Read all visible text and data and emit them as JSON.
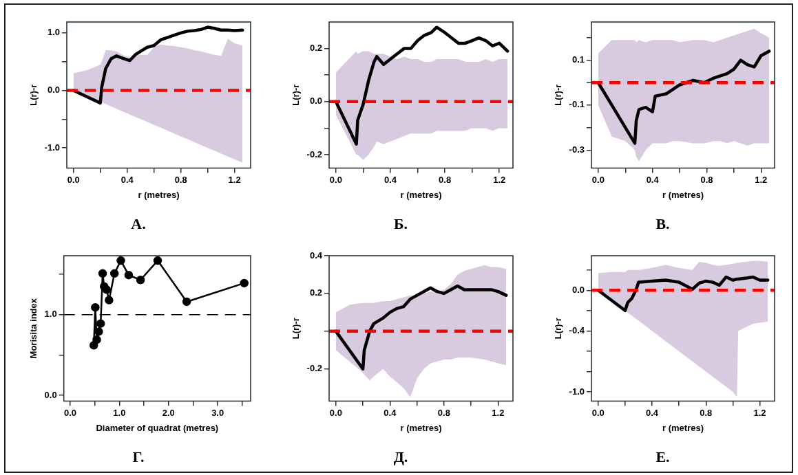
{
  "chart_data": [
    {
      "type": "line",
      "title": "А.",
      "xlabel": "r (metres)",
      "ylabel": "L(r)-r",
      "marker": "none",
      "x": [
        0,
        0.1,
        0.2,
        0.21,
        0.24,
        0.28,
        0.32,
        0.38,
        0.42,
        0.46,
        0.5,
        0.55,
        0.6,
        0.65,
        0.7,
        0.75,
        0.8,
        0.85,
        0.9,
        0.95,
        1.0,
        1.05,
        1.1,
        1.15,
        1.2,
        1.26
      ],
      "series": [
        {
          "color": "#000000",
          "values": [
            0,
            -0.11,
            -0.22,
            0.05,
            0.38,
            0.55,
            0.6,
            0.55,
            0.52,
            0.62,
            0.68,
            0.75,
            0.78,
            0.88,
            0.92,
            0.96,
            1.0,
            1.03,
            1.04,
            1.06,
            1.1,
            1.08,
            1.05,
            1.05,
            1.04,
            1.05
          ],
          "lower": [
            0,
            -0.1,
            -0.2,
            -0.21,
            -0.24,
            -0.28,
            -0.32,
            -0.38,
            -0.42,
            -0.46,
            -0.5,
            -0.55,
            -0.6,
            -0.65,
            -0.7,
            -0.75,
            -0.8,
            -0.85,
            -0.9,
            -0.95,
            -1.0,
            -1.05,
            -1.1,
            -1.15,
            -1.2,
            -1.26
          ],
          "upper": [
            0.3,
            0.35,
            0.45,
            0.5,
            0.7,
            0.7,
            0.68,
            0.6,
            0.58,
            0.6,
            0.62,
            0.62,
            0.75,
            0.8,
            0.78,
            0.77,
            0.75,
            0.73,
            0.7,
            0.68,
            0.65,
            0.62,
            0.6,
            0.9,
            0.82,
            0.78
          ]
        }
      ],
      "xlim": [
        -0.05,
        1.32
      ],
      "xticks": [
        {
          "value": 0,
          "label": "0.0"
        },
        {
          "value": 0.2,
          "label": null
        },
        0.4,
        {
          "value": 0.6,
          "label": null
        },
        0.8,
        {
          "value": 1,
          "label": null
        },
        1.2
      ],
      "ylim": [
        -1.35,
        1.19
      ],
      "yticks": [
        {
          "value": -1,
          "label": "-1.0"
        },
        {
          "value": -0.5,
          "label": null
        },
        {
          "value": 0,
          "label": "0.0"
        },
        {
          "value": 0.5,
          "label": null
        },
        {
          "value": 1,
          "label": "1.0"
        }
      ],
      "ref_lines": [
        {
          "axis": "y",
          "value": 0,
          "color": "#ff0000",
          "line_style": "dashed"
        }
      ]
    },
    {
      "type": "line",
      "title": "Б.",
      "xlabel": "r (metres)",
      "ylabel": "L(r)-r",
      "marker": "none",
      "x": [
        0,
        0.15,
        0.16,
        0.2,
        0.24,
        0.28,
        0.3,
        0.35,
        0.4,
        0.45,
        0.5,
        0.55,
        0.6,
        0.65,
        0.7,
        0.74,
        0.8,
        0.85,
        0.9,
        0.95,
        1.0,
        1.05,
        1.1,
        1.15,
        1.2,
        1.26
      ],
      "series": [
        {
          "color": "#000000",
          "values": [
            0,
            -0.16,
            -0.07,
            -0.01,
            0.08,
            0.15,
            0.17,
            0.14,
            0.16,
            0.18,
            0.2,
            0.2,
            0.23,
            0.25,
            0.26,
            0.28,
            0.26,
            0.24,
            0.22,
            0.22,
            0.23,
            0.24,
            0.23,
            0.21,
            0.22,
            0.19
          ],
          "lower": [
            -0.05,
            -0.2,
            -0.2,
            -0.22,
            -0.2,
            -0.17,
            -0.15,
            -0.16,
            -0.15,
            -0.14,
            -0.13,
            -0.12,
            -0.12,
            -0.12,
            -0.12,
            -0.11,
            -0.11,
            -0.11,
            -0.11,
            -0.11,
            -0.1,
            -0.1,
            -0.1,
            -0.11,
            -0.1,
            -0.1
          ],
          "upper": [
            0.11,
            0.19,
            0.18,
            0.19,
            0.19,
            0.18,
            0.18,
            0.18,
            0.17,
            0.16,
            0.17,
            0.16,
            0.16,
            0.15,
            0.15,
            0.16,
            0.16,
            0.16,
            0.16,
            0.15,
            0.15,
            0.15,
            0.16,
            0.15,
            0.16,
            0.16
          ]
        }
      ],
      "xlim": [
        -0.05,
        1.3
      ],
      "xticks": [
        {
          "value": 0,
          "label": "0.0"
        },
        {
          "value": 0.2,
          "label": null
        },
        0.4,
        {
          "value": 0.6,
          "label": null
        },
        0.8,
        {
          "value": 1,
          "label": null
        },
        1.2
      ],
      "ylim": [
        -0.25,
        0.3
      ],
      "yticks": [
        -0.2,
        {
          "value": -0.1,
          "label": null
        },
        {
          "value": 0,
          "label": "0.0"
        },
        {
          "value": 0.1,
          "label": null
        },
        0.2
      ],
      "ref_lines": [
        {
          "axis": "y",
          "value": 0,
          "color": "#ff0000",
          "line_style": "dashed"
        }
      ]
    },
    {
      "type": "line",
      "title": "В.",
      "xlabel": "r (metres)",
      "ylabel": "L(r)-r",
      "marker": "none",
      "x": [
        0,
        0.1,
        0.2,
        0.27,
        0.28,
        0.3,
        0.35,
        0.4,
        0.42,
        0.5,
        0.55,
        0.6,
        0.7,
        0.78,
        0.85,
        0.9,
        0.95,
        1.0,
        1.05,
        1.1,
        1.15,
        1.2,
        1.26
      ],
      "series": [
        {
          "color": "#000000",
          "values": [
            0,
            -0.1,
            -0.2,
            -0.27,
            -0.17,
            -0.12,
            -0.11,
            -0.13,
            -0.06,
            -0.05,
            -0.03,
            -0.01,
            0.01,
            0.0,
            0.02,
            0.03,
            0.04,
            0.06,
            0.1,
            0.08,
            0.07,
            0.12,
            0.14
          ],
          "lower": [
            -0.1,
            -0.24,
            -0.26,
            -0.3,
            -0.33,
            -0.35,
            -0.3,
            -0.27,
            -0.27,
            -0.27,
            -0.26,
            -0.26,
            -0.27,
            -0.27,
            -0.26,
            -0.26,
            -0.27,
            -0.26,
            -0.27,
            -0.28,
            -0.27,
            -0.27,
            -0.27
          ],
          "upper": [
            0.13,
            0.19,
            0.19,
            0.19,
            0.18,
            0.19,
            0.18,
            0.19,
            0.19,
            0.19,
            0.19,
            0.18,
            0.19,
            0.19,
            0.18,
            0.19,
            0.2,
            0.21,
            0.22,
            0.23,
            0.24,
            0.22,
            0.2
          ]
        }
      ],
      "xlim": [
        -0.05,
        1.3
      ],
      "xticks": [
        {
          "value": 0,
          "label": "0.0"
        },
        {
          "value": 0.2,
          "label": null
        },
        0.4,
        {
          "value": 0.6,
          "label": null
        },
        0.8,
        {
          "value": 1,
          "label": null
        },
        1.2
      ],
      "ylim": [
        -0.38,
        0.27
      ],
      "yticks": [
        -0.3,
        {
          "value": -0.2,
          "label": null
        },
        -0.1,
        {
          "value": 0,
          "label": null
        },
        0.1,
        {
          "value": 0.2,
          "label": null
        }
      ],
      "ref_lines": [
        {
          "axis": "y",
          "value": 0,
          "color": "#ff0000",
          "line_style": "dashed"
        }
      ]
    },
    {
      "type": "line",
      "title": "Г.",
      "xlabel": "Diameter of quadrat (metres)",
      "ylabel": "Morisita index",
      "marker": "circle",
      "x": [
        0.48,
        0.51,
        0.54,
        0.58,
        0.62,
        0.66,
        0.69,
        0.74,
        0.79,
        0.9,
        1.03,
        1.19,
        1.43,
        1.78,
        2.37,
        3.54
      ],
      "series": [
        {
          "color": "#000000",
          "values": [
            0.62,
            1.09,
            0.69,
            0.79,
            0.89,
            1.51,
            1.35,
            1.31,
            1.18,
            1.51,
            1.67,
            1.49,
            1.43,
            1.67,
            1.16,
            1.39
          ]
        }
      ],
      "xlim": [
        -0.13,
        3.67
      ],
      "xticks": [
        {
          "value": 0,
          "label": "0.0"
        },
        {
          "value": 0.5,
          "label": null
        },
        {
          "value": 1,
          "label": "1.0"
        },
        {
          "value": 1.5,
          "label": null
        },
        {
          "value": 2,
          "label": "2.0"
        },
        {
          "value": 2.5,
          "label": null
        },
        {
          "value": 3,
          "label": "3.0"
        },
        {
          "value": 3.5,
          "label": null
        }
      ],
      "ylim": [
        -0.07,
        1.73
      ],
      "yticks": [
        {
          "value": 0,
          "label": "0.0"
        },
        {
          "value": 0.5,
          "label": null
        },
        {
          "value": 1,
          "label": "1.0"
        },
        {
          "value": 1.5,
          "label": null
        }
      ],
      "ref_lines": [
        {
          "axis": "y",
          "value": 1,
          "color": "#000000",
          "line_style": "dashed"
        }
      ]
    },
    {
      "type": "line",
      "title": "Д.",
      "xlabel": "r (metres)",
      "ylabel": "L(r)-r",
      "marker": "none",
      "x": [
        0,
        0.1,
        0.2,
        0.21,
        0.25,
        0.28,
        0.35,
        0.4,
        0.45,
        0.5,
        0.55,
        0.6,
        0.65,
        0.7,
        0.75,
        0.8,
        0.85,
        0.9,
        0.95,
        1.0,
        1.1,
        1.15,
        1.2,
        1.26
      ],
      "series": [
        {
          "color": "#000000",
          "values": [
            0,
            -0.1,
            -0.2,
            -0.1,
            0.0,
            0.04,
            0.07,
            0.1,
            0.12,
            0.13,
            0.17,
            0.19,
            0.21,
            0.23,
            0.21,
            0.2,
            0.22,
            0.24,
            0.22,
            0.22,
            0.22,
            0.22,
            0.21,
            0.19
          ],
          "lower": [
            -0.1,
            -0.16,
            -0.22,
            -0.23,
            -0.26,
            -0.24,
            -0.2,
            -0.24,
            -0.27,
            -0.3,
            -0.35,
            -0.25,
            -0.2,
            -0.17,
            -0.16,
            -0.15,
            -0.15,
            -0.14,
            -0.14,
            -0.14,
            -0.15,
            -0.16,
            -0.17,
            -0.18
          ],
          "upper": [
            0.1,
            0.14,
            0.15,
            0.15,
            0.15,
            0.15,
            0.16,
            0.16,
            0.17,
            0.18,
            0.19,
            0.19,
            0.2,
            0.21,
            0.21,
            0.22,
            0.25,
            0.3,
            0.32,
            0.33,
            0.35,
            0.34,
            0.34,
            0.33
          ]
        }
      ],
      "xlim": [
        -0.05,
        1.31
      ],
      "xticks": [
        {
          "value": 0,
          "label": "0.0"
        },
        {
          "value": 0.2,
          "label": null
        },
        0.4,
        {
          "value": 0.6,
          "label": null
        },
        0.8,
        {
          "value": 1,
          "label": null
        },
        1.2
      ],
      "ylim": [
        -0.37,
        0.4
      ],
      "yticks": [
        -0.2,
        {
          "value": 0,
          "label": null
        },
        0.2,
        0.4
      ],
      "ref_lines": [
        {
          "axis": "y",
          "value": 0,
          "color": "#ff0000",
          "line_style": "dashed"
        }
      ]
    },
    {
      "type": "line",
      "title": "Е.",
      "xlabel": "r (metres)",
      "ylabel": "L(r)-r",
      "marker": "none",
      "x": [
        0,
        0.1,
        0.2,
        0.22,
        0.25,
        0.28,
        0.3,
        0.4,
        0.5,
        0.6,
        0.7,
        0.75,
        0.8,
        0.85,
        0.9,
        0.95,
        1.0,
        1.03,
        1.04,
        1.1,
        1.15,
        1.2,
        1.26
      ],
      "series": [
        {
          "color": "#000000",
          "values": [
            0,
            -0.1,
            -0.2,
            -0.12,
            -0.08,
            0.0,
            0.08,
            0.09,
            0.1,
            0.08,
            0.01,
            0.07,
            0.09,
            0.08,
            0.05,
            0.13,
            0.1,
            0.11,
            0.11,
            0.12,
            0.13,
            0.1,
            0.1
          ],
          "lower": [
            0,
            -0.1,
            -0.2,
            -0.22,
            -0.25,
            -0.28,
            -0.3,
            -0.4,
            -0.5,
            -0.6,
            -0.7,
            -0.75,
            -0.8,
            -0.85,
            -0.9,
            -0.95,
            -1.0,
            -1.05,
            -0.4,
            -0.36,
            -0.33,
            -0.32,
            -0.31
          ],
          "upper": [
            0.17,
            0.18,
            0.18,
            0.2,
            0.2,
            0.2,
            0.2,
            0.22,
            0.25,
            0.22,
            0.2,
            0.28,
            0.27,
            0.25,
            0.24,
            0.25,
            0.26,
            0.27,
            0.27,
            0.28,
            0.29,
            0.29,
            0.28
          ]
        }
      ],
      "xlim": [
        -0.05,
        1.31
      ],
      "xticks": [
        {
          "value": 0,
          "label": "0.0"
        },
        {
          "value": 0.2,
          "label": null
        },
        0.4,
        {
          "value": 0.6,
          "label": null
        },
        0.8,
        {
          "value": 1,
          "label": null
        },
        1.2
      ],
      "ylim": [
        -1.09,
        0.34
      ],
      "yticks": [
        {
          "value": -1,
          "label": "-1.0"
        },
        {
          "value": -0.8,
          "label": null
        },
        {
          "value": -0.6,
          "label": null
        },
        -0.4,
        {
          "value": -0.2,
          "label": null
        },
        {
          "value": 0,
          "label": "0.0"
        },
        {
          "value": 0.2,
          "label": null
        }
      ],
      "ref_lines": [
        {
          "axis": "y",
          "value": 0,
          "color": "#ff0000",
          "line_style": "dashed"
        }
      ]
    }
  ]
}
